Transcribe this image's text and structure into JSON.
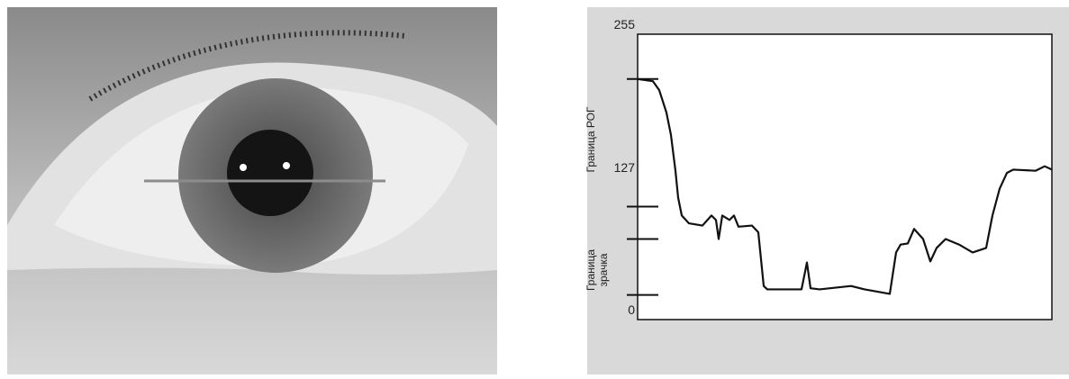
{
  "chart_data": {
    "type": "line",
    "y_annotations": [
      [
        "Граница РОГ"
      ],
      [
        "Граница",
        "зрачка"
      ]
    ],
    "x": [
      0,
      17,
      24,
      32,
      37,
      42,
      45,
      49,
      57,
      72,
      82,
      87,
      90,
      94,
      102,
      107,
      112,
      127,
      134,
      140,
      144,
      182,
      188,
      192,
      202,
      237,
      252,
      280,
      287,
      292,
      300,
      307,
      317,
      325,
      332,
      342,
      357,
      372,
      387,
      394,
      402,
      410,
      417,
      442,
      452,
      460
    ],
    "series": [
      {
        "color": "#111111",
        "values": [
          215,
          213,
          205,
          185,
          165,
          133,
          109,
          93,
          86,
          84,
          93,
          89,
          72,
          93,
          89,
          93,
          83,
          84,
          78,
          30,
          27,
          27,
          51,
          28,
          27,
          30,
          27,
          23,
          60,
          67,
          68,
          81,
          72,
          52,
          64,
          72,
          67,
          60,
          64,
          93,
          117,
          131,
          134,
          133,
          137,
          134
        ]
      }
    ],
    "boundary_marks": [
      215,
      101,
      72,
      22
    ],
    "xlim": [
      0,
      460
    ],
    "ylim": [
      0,
      255
    ],
    "yticks": [
      0,
      127,
      255
    ],
    "grid": false
  }
}
